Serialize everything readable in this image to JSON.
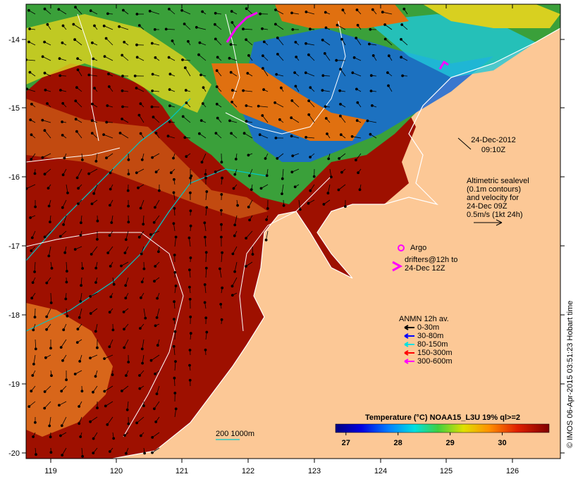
{
  "map": {
    "date": "24-Dec-2012",
    "time": "09:10Z",
    "altimetry_lines": [
      "Altimetric sealevel",
      "(0.1m contours)",
      "and velocity for",
      "24-Dec 09Z",
      "0.5m/s (1kt 24h)"
    ],
    "argo_label": "Argo",
    "drifter_lines": [
      "drifters@12h to",
      "24-Dec 12Z"
    ],
    "anmn": {
      "title": "ANMN 12h av.",
      "items": [
        {
          "label": "0-30m",
          "color": "#000000"
        },
        {
          "label": "30-80m",
          "color": "#0000ff"
        },
        {
          "label": "80-150m",
          "color": "#00e0e0"
        },
        {
          "label": "150-300m",
          "color": "#ff0000"
        },
        {
          "label": "300-600m",
          "color": "#ff00ff"
        }
      ]
    },
    "colorbar": {
      "title": "Temperature (°C) NOAA15_L3U 19% ql>=2",
      "ticks": [
        "27",
        "28",
        "29",
        "30"
      ],
      "range": [
        26.8,
        30.9
      ]
    },
    "bathy_label": "200  1000m",
    "credit": "© IMOS 06-Apr-2015 03:51:23 Hobart time",
    "lon_ticks": [
      "119",
      "120",
      "121",
      "122",
      "123",
      "124",
      "125",
      "126"
    ],
    "lat_ticks": [
      "-14",
      "-15",
      "-16",
      "-17",
      "-18",
      "-19",
      "-20"
    ],
    "colors": {
      "land": "#fcc896",
      "warm_sea": "#9e1000",
      "cool_green": "#3aa03a",
      "orange": "#e07010",
      "cyan_contour": "#00c8c8",
      "white_contour": "#ffffff"
    }
  }
}
